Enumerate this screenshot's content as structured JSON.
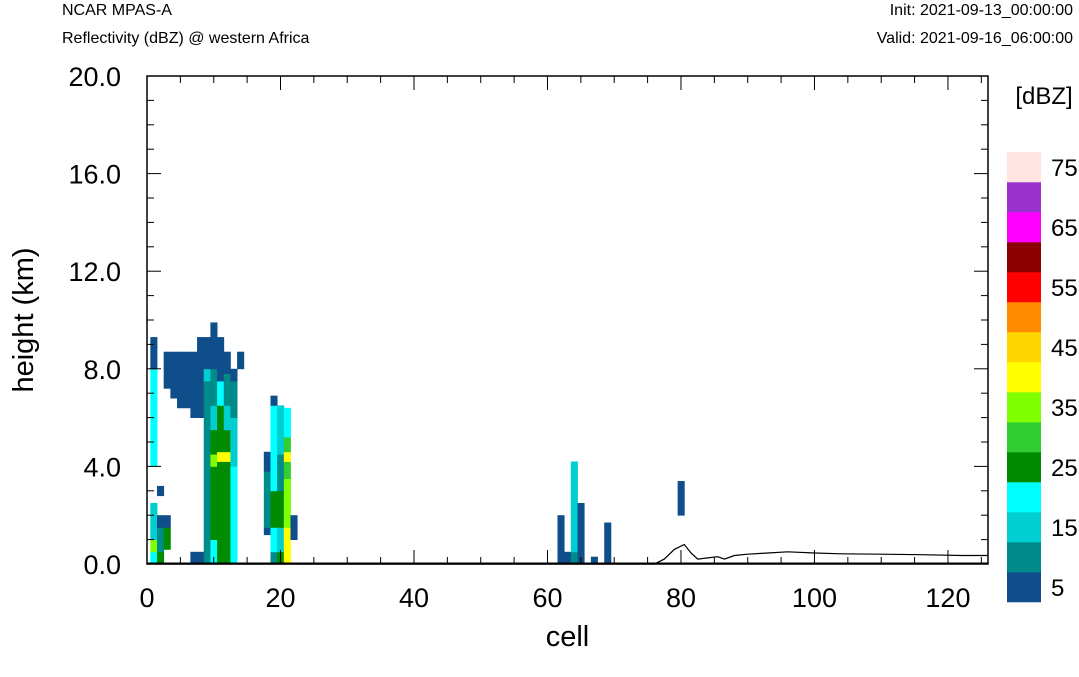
{
  "header": {
    "model": "NCAR MPAS-A",
    "field": "Reflectivity (dBZ) @ western Africa",
    "init": "Init: 2021-09-13_00:00:00",
    "valid": "Valid: 2021-09-16_06:00:00"
  },
  "chart_data": {
    "type": "heatmap",
    "title": "Reflectivity (dBZ) @ western Africa",
    "xlabel": "cell",
    "ylabel": "height (km)",
    "xlim": [
      0,
      126
    ],
    "ylim": [
      0,
      20
    ],
    "x_ticks": [
      0,
      20,
      40,
      60,
      80,
      100,
      120
    ],
    "x_tick_labels": [
      "0",
      "20",
      "40",
      "60",
      "80",
      "100",
      "120"
    ],
    "y_ticks": [
      0,
      4,
      8,
      12,
      16,
      20
    ],
    "y_tick_labels": [
      "0.0",
      "4.0",
      "8.0",
      "12.0",
      "16.0",
      "20.0"
    ],
    "grid": false,
    "colorbar": {
      "label": "[dBZ]",
      "levels": [
        5,
        10,
        15,
        20,
        25,
        30,
        35,
        40,
        45,
        50,
        55,
        60,
        65,
        70,
        75
      ],
      "labels": [
        "5",
        "15",
        "25",
        "35",
        "45",
        "55",
        "65",
        "75"
      ],
      "colors": [
        "#104E8B",
        "#008B8B",
        "#00CED1",
        "#00FFFF",
        "#008B00",
        "#32CD32",
        "#7FFF00",
        "#FFFF00",
        "#FFD700",
        "#FF8C00",
        "#FF0000",
        "#8B0000",
        "#FF00FF",
        "#9932CC",
        "#FFE4E1"
      ]
    },
    "columns": [
      {
        "x": 1,
        "segments": [
          [
            0,
            0.5,
            20
          ],
          [
            0.5,
            1.0,
            35
          ],
          [
            1.0,
            2.0,
            15
          ],
          [
            2.0,
            2.5,
            15
          ],
          [
            4.0,
            5.0,
            20
          ],
          [
            5.0,
            8.0,
            20
          ],
          [
            8.0,
            9.3,
            5
          ]
        ]
      },
      {
        "x": 2,
        "segments": [
          [
            0,
            0.5,
            25
          ],
          [
            0.5,
            1.5,
            10
          ],
          [
            1.5,
            2.0,
            5
          ],
          [
            2.8,
            3.2,
            5
          ]
        ]
      },
      {
        "x": 3,
        "segments": [
          [
            0.6,
            1.5,
            25
          ],
          [
            1.5,
            2.0,
            5
          ],
          [
            7.2,
            8.7,
            5
          ]
        ]
      },
      {
        "x": 4,
        "segments": [
          [
            6.8,
            8.7,
            5
          ]
        ]
      },
      {
        "x": 5,
        "segments": [
          [
            6.4,
            8.7,
            5
          ]
        ]
      },
      {
        "x": 6,
        "segments": [
          [
            6.4,
            8.7,
            5
          ]
        ]
      },
      {
        "x": 7,
        "segments": [
          [
            0,
            0.5,
            5
          ],
          [
            6.0,
            8.7,
            5
          ]
        ]
      },
      {
        "x": 8,
        "segments": [
          [
            0,
            0.5,
            5
          ],
          [
            6.0,
            9.3,
            5
          ]
        ]
      },
      {
        "x": 9,
        "segments": [
          [
            0,
            1.0,
            10
          ],
          [
            1.0,
            4.0,
            10
          ],
          [
            4.0,
            7.5,
            10
          ],
          [
            7.5,
            8.0,
            15
          ],
          [
            8.0,
            9.3,
            5
          ]
        ]
      },
      {
        "x": 10,
        "segments": [
          [
            0,
            1.0,
            20
          ],
          [
            1.0,
            4.0,
            25
          ],
          [
            4.0,
            4.5,
            35
          ],
          [
            4.5,
            5.5,
            25
          ],
          [
            5.5,
            6.5,
            15
          ],
          [
            6.5,
            8.0,
            10
          ],
          [
            8.0,
            9.9,
            5
          ]
        ]
      },
      {
        "x": 11,
        "segments": [
          [
            0,
            1.5,
            25
          ],
          [
            1.5,
            4.2,
            25
          ],
          [
            4.2,
            4.6,
            40
          ],
          [
            4.6,
            6.5,
            25
          ],
          [
            6.5,
            7.5,
            20
          ],
          [
            7.5,
            9.3,
            5
          ]
        ]
      },
      {
        "x": 12,
        "segments": [
          [
            0,
            0.5,
            25
          ],
          [
            0.5,
            4.2,
            25
          ],
          [
            4.2,
            4.6,
            40
          ],
          [
            4.6,
            5.5,
            25
          ],
          [
            5.5,
            6.5,
            15
          ],
          [
            6.5,
            7.8,
            10
          ],
          [
            7.8,
            8.7,
            5
          ]
        ]
      },
      {
        "x": 13,
        "segments": [
          [
            0,
            4.0,
            20
          ],
          [
            4.0,
            6.0,
            15
          ],
          [
            6.0,
            7.5,
            10
          ],
          [
            7.5,
            8.0,
            5
          ]
        ]
      },
      {
        "x": 14,
        "segments": [
          [
            8.0,
            8.7,
            5
          ]
        ]
      },
      {
        "x": 18,
        "segments": [
          [
            1.2,
            1.5,
            5
          ],
          [
            1.5,
            3.8,
            10
          ],
          [
            3.8,
            4.6,
            5
          ]
        ]
      },
      {
        "x": 19,
        "segments": [
          [
            0,
            0.5,
            10
          ],
          [
            0.5,
            1.5,
            20
          ],
          [
            1.5,
            3.0,
            25
          ],
          [
            3.0,
            4.5,
            20
          ],
          [
            4.5,
            6.5,
            20
          ],
          [
            6.5,
            6.9,
            5
          ]
        ]
      },
      {
        "x": 20,
        "segments": [
          [
            0,
            0.5,
            25
          ],
          [
            0.5,
            1.5,
            15
          ],
          [
            1.5,
            3.0,
            25
          ],
          [
            3.0,
            4.5,
            10
          ],
          [
            4.5,
            6.5,
            15
          ]
        ]
      },
      {
        "x": 21,
        "segments": [
          [
            0,
            1.5,
            40
          ],
          [
            1.5,
            3.5,
            35
          ],
          [
            3.5,
            4.2,
            30
          ],
          [
            4.2,
            4.6,
            40
          ],
          [
            4.6,
            5.2,
            30
          ],
          [
            5.2,
            6.4,
            20
          ]
        ]
      },
      {
        "x": 22,
        "segments": [
          [
            1.0,
            2.0,
            5
          ]
        ]
      },
      {
        "x": 62,
        "segments": [
          [
            0,
            2.0,
            5
          ]
        ]
      },
      {
        "x": 63,
        "segments": [
          [
            0,
            0.5,
            5
          ]
        ]
      },
      {
        "x": 64,
        "segments": [
          [
            0,
            0.5,
            10
          ],
          [
            0.5,
            1.5,
            15
          ],
          [
            1.5,
            4.2,
            15
          ]
        ]
      },
      {
        "x": 65,
        "segments": [
          [
            0,
            2.5,
            5
          ]
        ]
      },
      {
        "x": 67,
        "segments": [
          [
            0,
            0.3,
            5
          ]
        ]
      },
      {
        "x": 69,
        "segments": [
          [
            0,
            1.7,
            5
          ]
        ]
      },
      {
        "x": 80,
        "segments": [
          [
            2.0,
            3.4,
            5
          ]
        ]
      }
    ],
    "terrain": [
      [
        0,
        0
      ],
      [
        76,
        0
      ],
      [
        77.5,
        0.2
      ],
      [
        79,
        0.6
      ],
      [
        80.5,
        0.8
      ],
      [
        81.5,
        0.45
      ],
      [
        82.5,
        0.2
      ],
      [
        84,
        0.25
      ],
      [
        85.5,
        0.3
      ],
      [
        86.5,
        0.2
      ],
      [
        88,
        0.35
      ],
      [
        90,
        0.4
      ],
      [
        93,
        0.45
      ],
      [
        96,
        0.5
      ],
      [
        100,
        0.45
      ],
      [
        104,
        0.42
      ],
      [
        110,
        0.4
      ],
      [
        116,
        0.38
      ],
      [
        122,
        0.35
      ],
      [
        126,
        0.35
      ]
    ]
  }
}
